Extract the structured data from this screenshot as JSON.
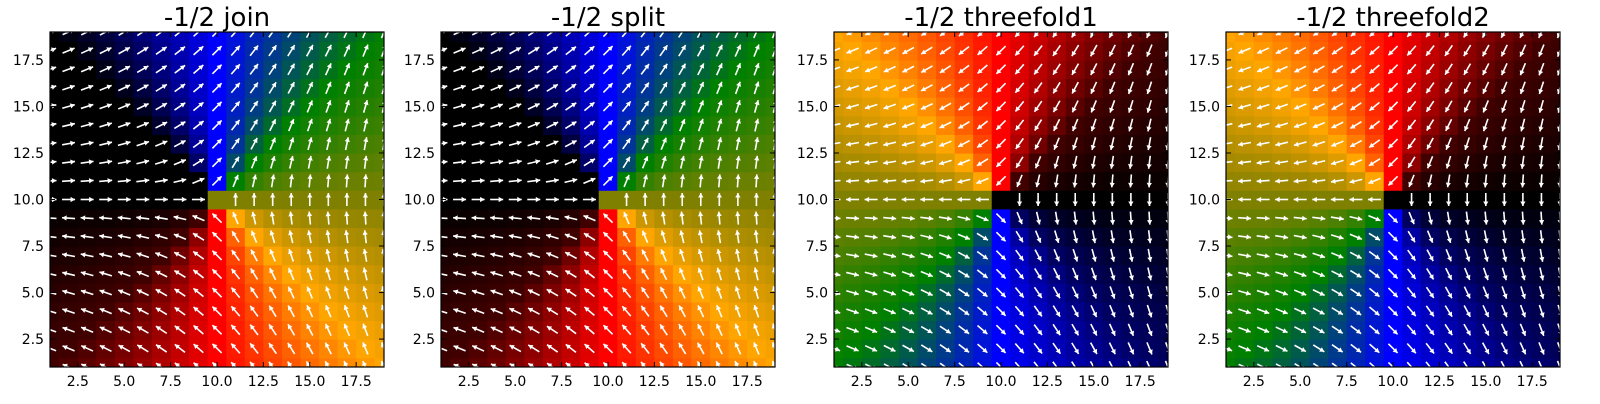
{
  "chart_data": [
    {
      "type": "heatmap",
      "subtype": "vector-field-quiver",
      "title": "-1/2 join",
      "xlabel": "",
      "ylabel": "",
      "xlim": [
        1,
        19
      ],
      "ylim": [
        1,
        19
      ],
      "grid_size": [
        19,
        19
      ],
      "defect_center": [
        10,
        10
      ],
      "x_ticks": [
        "2.5",
        "5.0",
        "7.5",
        "10.0",
        "12.5",
        "15.0",
        "17.5"
      ],
      "y_ticks": [
        "2.5",
        "5.0",
        "7.5",
        "10.0",
        "12.5",
        "15.0",
        "17.5"
      ],
      "grid": false,
      "legend": "none",
      "arrow_color": "#ffffff",
      "colors": {
        "left_upper": "#000000",
        "upper": "#0000ff",
        "right_upper": "#008000",
        "right": "#808000",
        "right_lower": "#ffa500",
        "lower": "#ff0000",
        "left_lower": "#400000",
        "left": "#000000"
      }
    },
    {
      "type": "heatmap",
      "subtype": "vector-field-quiver",
      "title": "-1/2 split",
      "xlabel": "",
      "ylabel": "",
      "xlim": [
        1,
        19
      ],
      "ylim": [
        1,
        19
      ],
      "grid_size": [
        19,
        19
      ],
      "defect_center": [
        10,
        10
      ],
      "x_ticks": [
        "2.5",
        "5.0",
        "7.5",
        "10.0",
        "12.5",
        "15.0",
        "17.5"
      ],
      "y_ticks": [
        "2.5",
        "5.0",
        "7.5",
        "10.0",
        "12.5",
        "15.0",
        "17.5"
      ],
      "grid": false,
      "legend": "none",
      "arrow_color": "#ffffff",
      "colors": {
        "left_upper": "#000000",
        "upper": "#0000ff",
        "right_upper": "#008000",
        "right": "#808000",
        "right_lower": "#ffa500",
        "lower": "#ff0000",
        "left_lower": "#400000",
        "left": "#000000"
      }
    },
    {
      "type": "heatmap",
      "subtype": "vector-field-quiver",
      "title": "-1/2 threefold1",
      "xlabel": "",
      "ylabel": "",
      "xlim": [
        1,
        19
      ],
      "ylim": [
        1,
        19
      ],
      "grid_size": [
        19,
        19
      ],
      "defect_center": [
        10,
        10
      ],
      "x_ticks": [
        "2.5",
        "5.0",
        "7.5",
        "10.0",
        "12.5",
        "15.0",
        "17.5"
      ],
      "y_ticks": [
        "2.5",
        "5.0",
        "7.5",
        "10.0",
        "12.5",
        "15.0",
        "17.5"
      ],
      "grid": false,
      "legend": "none",
      "arrow_color": "#ffffff",
      "colors": {
        "left_upper": "#ffa500",
        "upper": "#ff0000",
        "right_upper": "#400000",
        "right": "#000000",
        "right_lower": "#000060",
        "lower": "#0000ff",
        "left_lower": "#008000",
        "left": "#808000"
      }
    },
    {
      "type": "heatmap",
      "subtype": "vector-field-quiver",
      "title": "-1/2 threefold2",
      "xlabel": "",
      "ylabel": "",
      "xlim": [
        1,
        19
      ],
      "ylim": [
        1,
        19
      ],
      "grid_size": [
        19,
        19
      ],
      "defect_center": [
        10,
        10
      ],
      "x_ticks": [
        "2.5",
        "5.0",
        "7.5",
        "10.0",
        "12.5",
        "15.0",
        "17.5"
      ],
      "y_ticks": [
        "2.5",
        "5.0",
        "7.5",
        "10.0",
        "12.5",
        "15.0",
        "17.5"
      ],
      "grid": false,
      "legend": "none",
      "arrow_color": "#ffffff",
      "colors": {
        "left_upper": "#ffa500",
        "upper": "#ff0000",
        "right_upper": "#400000",
        "right": "#000000",
        "right_lower": "#000060",
        "lower": "#0000ff",
        "left_lower": "#008000",
        "left": "#808000"
      }
    }
  ]
}
